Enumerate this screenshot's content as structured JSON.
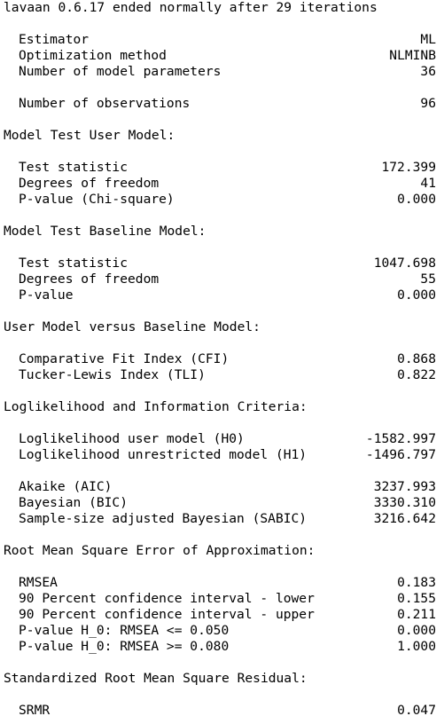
{
  "header": "lavaan 0.6.17 ended normally after 29 iterations",
  "top": {
    "estimator": {
      "label": "Estimator",
      "value": "ML"
    },
    "optimization": {
      "label": "Optimization method",
      "value": "NLMINB"
    },
    "n_params": {
      "label": "Number of model parameters",
      "value": "36"
    },
    "n_obs": {
      "label": "Number of observations",
      "value": "96"
    }
  },
  "user_model": {
    "title": "Model Test User Model:",
    "rows": [
      {
        "label": "Test statistic",
        "value": "172.399"
      },
      {
        "label": "Degrees of freedom",
        "value": "41"
      },
      {
        "label": "P-value (Chi-square)",
        "value": "0.000"
      }
    ]
  },
  "baseline_model": {
    "title": "Model Test Baseline Model:",
    "rows": [
      {
        "label": "Test statistic",
        "value": "1047.698"
      },
      {
        "label": "Degrees of freedom",
        "value": "55"
      },
      {
        "label": "P-value",
        "value": "0.000"
      }
    ]
  },
  "user_vs_baseline": {
    "title": "User Model versus Baseline Model:",
    "rows": [
      {
        "label": "Comparative Fit Index (CFI)",
        "value": "0.868"
      },
      {
        "label": "Tucker-Lewis Index (TLI)",
        "value": "0.822"
      }
    ]
  },
  "loglik": {
    "title": "Loglikelihood and Information Criteria:",
    "rows": [
      {
        "label": "Loglikelihood user model (H0)",
        "value": "-1582.997"
      },
      {
        "label": "Loglikelihood unrestricted model (H1)",
        "value": "-1496.797"
      }
    ],
    "rows2": [
      {
        "label": "Akaike (AIC)",
        "value": "3237.993"
      },
      {
        "label": "Bayesian (BIC)",
        "value": "3330.310"
      },
      {
        "label": "Sample-size adjusted Bayesian (SABIC)",
        "value": "3216.642"
      }
    ]
  },
  "rmsea": {
    "title": "Root Mean Square Error of Approximation:",
    "rows": [
      {
        "label": "RMSEA",
        "value": "0.183"
      },
      {
        "label": "90 Percent confidence interval - lower",
        "value": "0.155"
      },
      {
        "label": "90 Percent confidence interval - upper",
        "value": "0.211"
      },
      {
        "label": "P-value H_0: RMSEA <= 0.050",
        "value": "0.000"
      },
      {
        "label": "P-value H_0: RMSEA >= 0.080",
        "value": "1.000"
      }
    ]
  },
  "srmr": {
    "title": "Standardized Root Mean Square Residual:",
    "rows": [
      {
        "label": "SRMR",
        "value": "0.047"
      }
    ]
  }
}
